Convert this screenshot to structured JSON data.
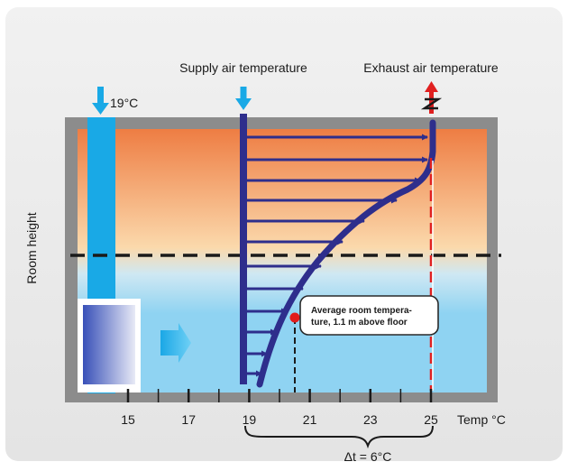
{
  "labels": {
    "supply": "Supply air temperature",
    "exhaust": "Exhaust air temperature",
    "inlet_temp": "19°C",
    "room_height": "Room height",
    "temp_axis": "Temp °C",
    "delta": "Δt = 6°C",
    "callout_line1": "Average room tempera-",
    "callout_line2": "ture, 1.1 m above floor"
  },
  "axis": {
    "ticks": [
      "15",
      "17",
      "19",
      "21",
      "23",
      "25"
    ]
  },
  "colors": {
    "background": "#e9e9e9",
    "wall": "#8c8c8c",
    "warm_top": "#ee7d43",
    "warm_mid": "#fbd7aa",
    "cool": "#8fd3f2",
    "profile": "#2e2e8c",
    "supply_duct": "#19a9e6",
    "exhaust_line": "#e02020",
    "point": "#e21b1b"
  }
}
